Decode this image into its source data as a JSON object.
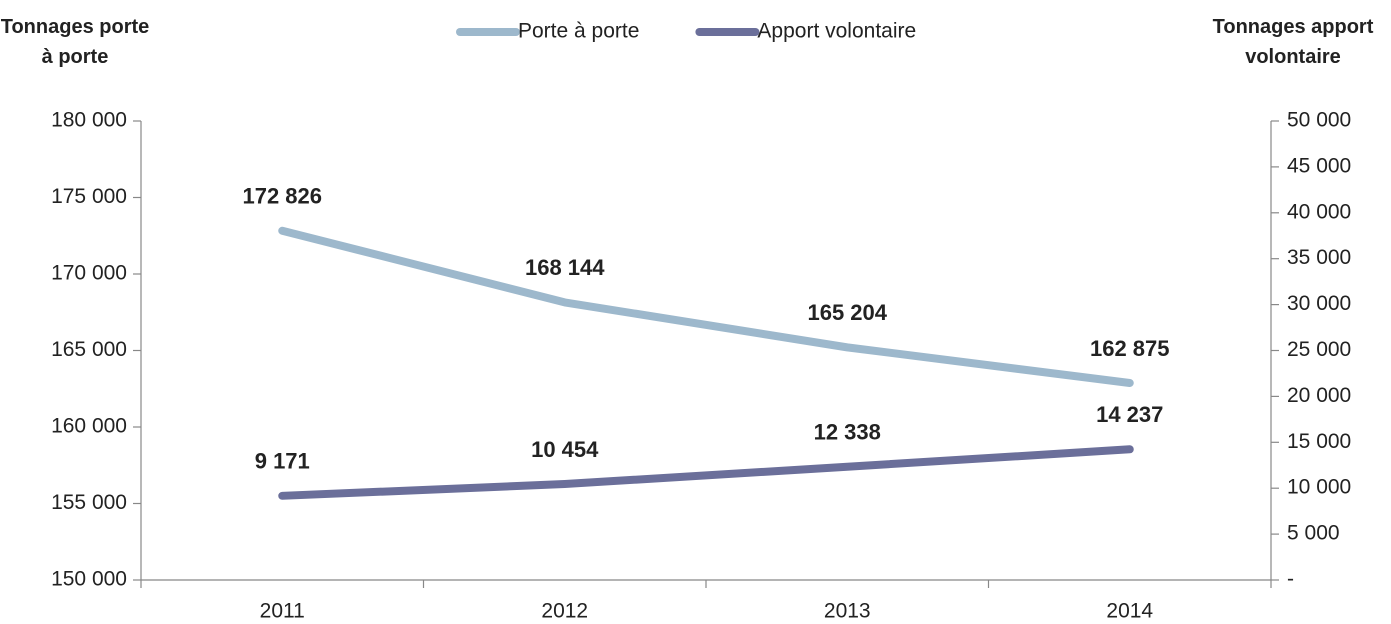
{
  "chart_data": {
    "type": "line",
    "ylabel": "Tonnages porte à porte",
    "y2label": "Tonnages apport volontaire",
    "categories": [
      "2011",
      "2012",
      "2013",
      "2014"
    ],
    "series": [
      {
        "name": "Porte à porte",
        "color": "#9db8cc",
        "values": [
          172826,
          168144,
          165204,
          162875
        ],
        "value_labels": [
          "172 826",
          "168 144",
          "165 204",
          "162 875"
        ]
      },
      {
        "name": "Apport volontaire",
        "color": "#6b6f9a",
        "axis": "y2",
        "values": [
          9171,
          10454,
          12338,
          14237
        ],
        "value_labels": [
          "9 171",
          "10 454",
          "12 338",
          "14 237"
        ]
      }
    ],
    "ylim": [
      150000,
      180000
    ],
    "yticks": [
      {
        "value": 150000,
        "label": "150 000"
      },
      {
        "value": 155000,
        "label": "155 000"
      },
      {
        "value": 160000,
        "label": "160 000"
      },
      {
        "value": 165000,
        "label": "165 000"
      },
      {
        "value": 170000,
        "label": "170 000"
      },
      {
        "value": 175000,
        "label": "175 000"
      },
      {
        "value": 180000,
        "label": "180 000"
      }
    ],
    "y2lim": [
      0,
      50000
    ],
    "y2ticks": [
      {
        "value": 0,
        "label": "-"
      },
      {
        "value": 5000,
        "label": "5 000"
      },
      {
        "value": 10000,
        "label": "10 000"
      },
      {
        "value": 15000,
        "label": "15 000"
      },
      {
        "value": 20000,
        "label": "20 000"
      },
      {
        "value": 25000,
        "label": "25 000"
      },
      {
        "value": 30000,
        "label": "30 000"
      },
      {
        "value": 35000,
        "label": "35 000"
      },
      {
        "value": 40000,
        "label": "40 000"
      },
      {
        "value": 45000,
        "label": "45 000"
      },
      {
        "value": 50000,
        "label": "50 000"
      }
    ],
    "legend": "top"
  }
}
